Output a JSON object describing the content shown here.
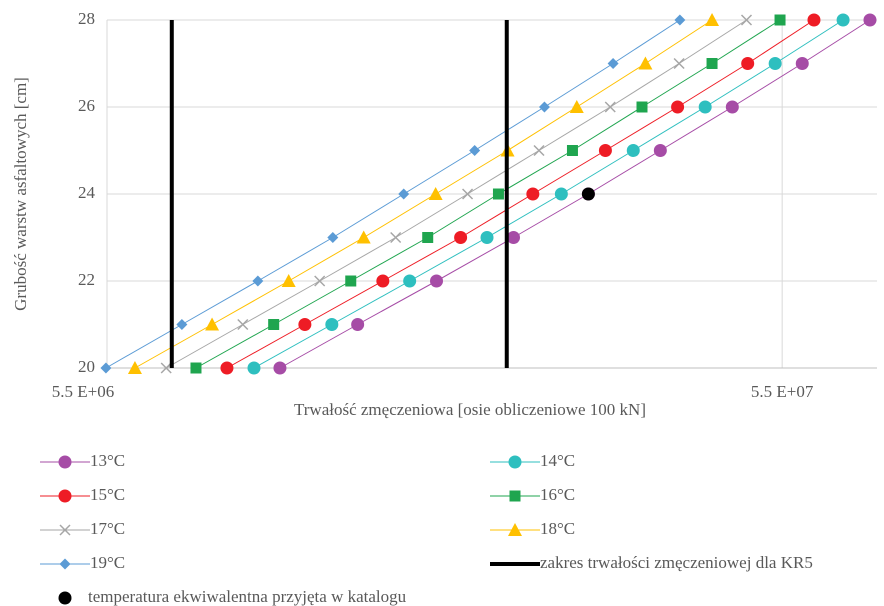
{
  "chart_data": {
    "type": "line",
    "xlabel": "Trwałość zmęczeniowa [osie obliczeniowe 100 kN]",
    "ylabel": "Grubość warstw asfaltowych [cm]",
    "xscale": "log",
    "xlim": [
      5500000,
      76000000
    ],
    "ylim": [
      20,
      28
    ],
    "xticks": [
      {
        "value": 5500000,
        "label": "5.5 E+06"
      },
      {
        "value": 55000000,
        "label": "5.5 E+07"
      }
    ],
    "yticks": [
      20,
      22,
      24,
      26,
      28
    ],
    "grid": true,
    "series": [
      {
        "name": "13°C",
        "color": "#a64ca6",
        "marker": "circle",
        "line": true,
        "x": [
          9920000,
          12930000,
          16920000,
          22000000,
          28400000,
          36300000,
          46400000,
          58900000,
          74200000
        ],
        "values": [
          20,
          21,
          22,
          23,
          24,
          25,
          26,
          27,
          28
        ]
      },
      {
        "name": "14°C",
        "color": "#2ebfbf",
        "marker": "circle",
        "line": true,
        "x": [
          9080000,
          11840000,
          15440000,
          20100000,
          25900000,
          33100000,
          42300000,
          53700000,
          67700000
        ],
        "values": [
          20,
          21,
          22,
          23,
          24,
          25,
          26,
          27,
          28
        ]
      },
      {
        "name": "15°C",
        "color": "#ee1c25",
        "marker": "circle",
        "line": true,
        "x": [
          8280000,
          10800000,
          14090000,
          18370000,
          23500000,
          30100000,
          38500000,
          48900000,
          61300000
        ],
        "values": [
          20,
          21,
          22,
          23,
          24,
          25,
          26,
          27,
          28
        ]
      },
      {
        "name": "16°C",
        "color": "#1fa54f",
        "marker": "square",
        "line": true,
        "x": [
          7450000,
          9710000,
          12630000,
          16420000,
          20900000,
          26900000,
          34100000,
          43300000,
          54600000
        ],
        "values": [
          20,
          21,
          22,
          23,
          24,
          25,
          26,
          27,
          28
        ]
      },
      {
        "name": "17°C",
        "color": "#a6a6a6",
        "marker": "x",
        "line": true,
        "x": [
          6730000,
          8740000,
          11360000,
          14720000,
          18810000,
          24000000,
          30600000,
          38700000,
          48700000
        ],
        "values": [
          20,
          21,
          22,
          23,
          24,
          25,
          26,
          27,
          28
        ]
      },
      {
        "name": "18°C",
        "color": "#ffc000",
        "marker": "triangle",
        "line": true,
        "x": [
          6050000,
          7870000,
          10220000,
          13200000,
          16870000,
          21560000,
          27300000,
          34500000,
          43300000
        ],
        "values": [
          20,
          21,
          22,
          23,
          24,
          25,
          26,
          27,
          28
        ]
      },
      {
        "name": "19°C",
        "color": "#5b9bd5",
        "marker": "diamond",
        "line": true,
        "x": [
          5480000,
          7100000,
          9200000,
          11880000,
          15130000,
          19270000,
          24450000,
          30900000,
          38800000
        ],
        "values": [
          20,
          21,
          22,
          23,
          24,
          25,
          26,
          27,
          28
        ]
      },
      {
        "name": "zakres trwałości zmęczeniowej dla KR5",
        "color": "#000000",
        "marker": "none",
        "line": true,
        "x": [
          6860000,
          6860000,
          null,
          21500000,
          21500000
        ],
        "values": [
          20,
          28,
          null,
          20,
          28
        ]
      },
      {
        "name": "temperatura ekwiwalentna przyjęta w katalogu",
        "color": "#000000",
        "marker": "circle",
        "line": false,
        "x": [
          28400000
        ],
        "values": [
          24
        ]
      }
    ]
  }
}
